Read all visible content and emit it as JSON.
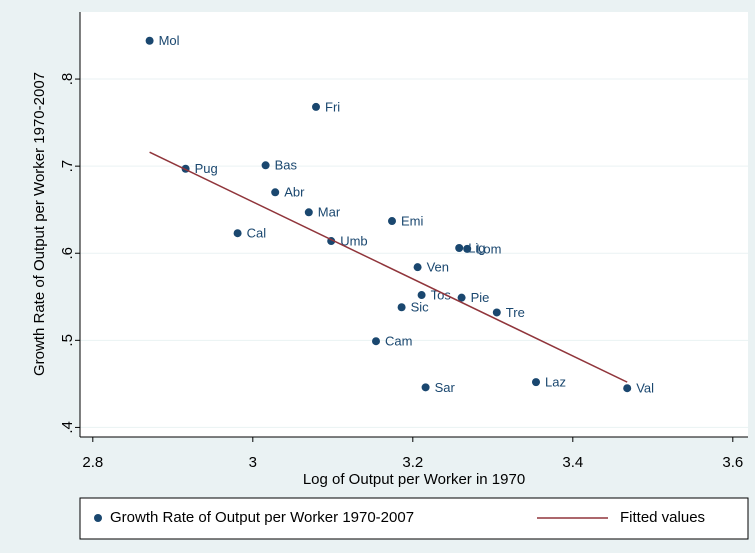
{
  "chart_data": {
    "type": "scatter",
    "x_label": "Log of Output per Worker in 1970",
    "y_label": "Growth Rate of Output per Worker 1970-2007",
    "xlim": [
      2.784,
      3.619
    ],
    "ylim": [
      0.389,
      0.877
    ],
    "xticks": [
      2.8,
      3,
      3.2,
      3.4,
      3.6
    ],
    "yticks": [
      {
        "value": 0.4,
        "label": ".4"
      },
      {
        "value": 0.5,
        "label": ".5"
      },
      {
        "value": 0.6,
        "label": ".6"
      },
      {
        "value": 0.7,
        "label": ".7"
      },
      {
        "value": 0.8,
        "label": ".8"
      }
    ],
    "grid": true,
    "legend": "bottom",
    "series": [
      {
        "name": "Growth Rate of Output per Worker 1970-2007",
        "color": "#1a476f",
        "kind": "points",
        "labels": [
          "Mol",
          "Fri",
          "Pug",
          "Bas",
          "Abr",
          "Mar",
          "Cal",
          "Umb",
          "Emi",
          "Lig",
          "Lom",
          "Ven",
          "Tos",
          "Pie",
          "Sic",
          "Tre",
          "Cam",
          "Sar",
          "Laz",
          "Val"
        ],
        "x": [
          2.871,
          3.079,
          2.916,
          3.016,
          3.028,
          3.07,
          2.981,
          3.098,
          3.174,
          3.258,
          3.268,
          3.206,
          3.211,
          3.261,
          3.186,
          3.305,
          3.154,
          3.216,
          3.354,
          3.468
        ],
        "values": [
          0.844,
          0.768,
          0.697,
          0.701,
          0.67,
          0.647,
          0.623,
          0.614,
          0.637,
          0.606,
          0.605,
          0.584,
          0.552,
          0.549,
          0.538,
          0.532,
          0.499,
          0.446,
          0.452,
          0.445
        ]
      },
      {
        "name": "Fitted values",
        "color": "#90353b",
        "kind": "line",
        "x": [
          2.871,
          3.468
        ],
        "values": [
          0.716,
          0.452
        ]
      }
    ]
  }
}
